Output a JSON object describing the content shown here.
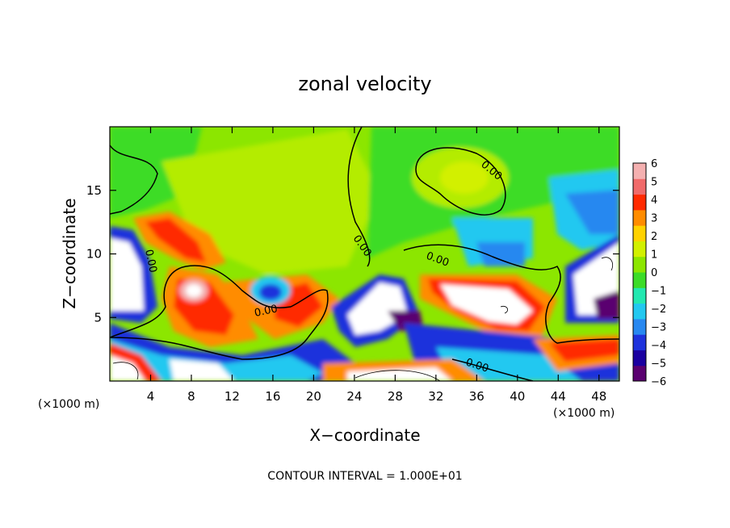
{
  "chart_data": {
    "type": "heatmap",
    "title": "zonal velocity",
    "xlabel": "X−coordinate",
    "ylabel": "Z−coordinate",
    "x_unit_label_left": "(×1000 m)",
    "x_unit_label_right": "(×1000 m)",
    "footer": "CONTOUR INTERVAL = 1.000E+01",
    "xlim": [
      0,
      50
    ],
    "ylim": [
      0,
      20
    ],
    "x_ticks": [
      4,
      8,
      12,
      16,
      20,
      24,
      28,
      32,
      36,
      40,
      44,
      48
    ],
    "y_ticks": [
      5,
      10,
      15
    ],
    "colorbar": {
      "min": -6,
      "max": 6,
      "ticks": [
        6,
        5,
        4,
        3,
        2,
        1,
        0,
        -1,
        -2,
        -3,
        -4,
        -5,
        -6
      ],
      "colors": [
        "#5a0070",
        "#1a00a0",
        "#1e32dc",
        "#2888f0",
        "#22c8f0",
        "#22e8b0",
        "#3cdc28",
        "#8ce600",
        "#d2f000",
        "#ffd200",
        "#ff8c00",
        "#ff2a00",
        "#f06a6a",
        "#f4b0b0"
      ]
    },
    "contour_labels": [
      "0.00",
      "0.00",
      "0.00",
      "0.00",
      "0.00",
      "0.00"
    ]
  }
}
